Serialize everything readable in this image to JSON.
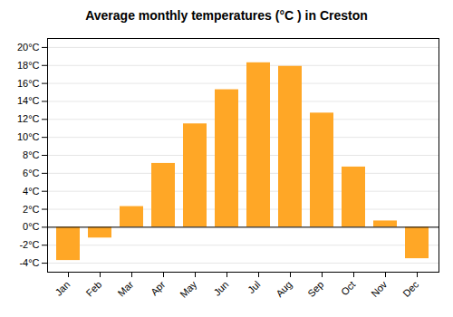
{
  "chart_data": {
    "type": "bar",
    "title": "Average monthly temperatures (°C ) in Creston",
    "categories": [
      "Jan",
      "Feb",
      "Mar",
      "Apr",
      "May",
      "Jun",
      "Jul",
      "Aug",
      "Sep",
      "Oct",
      "Nov",
      "Dec"
    ],
    "values": [
      -3.7,
      -1.2,
      2.3,
      7.1,
      11.5,
      15.3,
      18.3,
      17.9,
      12.7,
      6.7,
      0.7,
      -3.5
    ],
    "color": "#FFA726",
    "ylim": [
      -5,
      21
    ],
    "yticks": [
      {
        "value": -4,
        "label": "-4°C"
      },
      {
        "value": -2,
        "label": "-2°C"
      },
      {
        "value": 0,
        "label": "0°C"
      },
      {
        "value": 2,
        "label": "2°C"
      },
      {
        "value": 4,
        "label": "4°C"
      },
      {
        "value": 6,
        "label": "6°C"
      },
      {
        "value": 8,
        "label": "8°C"
      },
      {
        "value": 10,
        "label": "10°C"
      },
      {
        "value": 12,
        "label": "12°C"
      },
      {
        "value": 14,
        "label": "14°C"
      },
      {
        "value": 16,
        "label": "16°C"
      },
      {
        "value": 18,
        "label": "18°C"
      },
      {
        "value": 20,
        "label": "20°C"
      }
    ],
    "grid": true
  }
}
